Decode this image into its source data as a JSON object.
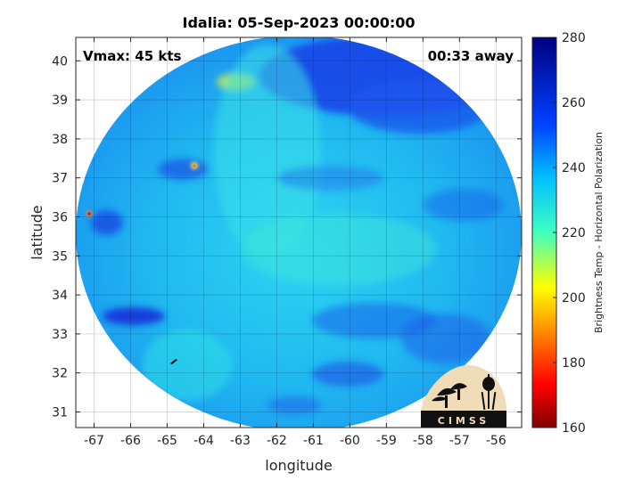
{
  "chart_data": {
    "type": "heatmap",
    "title": "Idalia: 05-Sep-2023 00:00:00",
    "xlabel": "longitude",
    "ylabel": "latitude",
    "xlim": [
      -67.5,
      -55.3
    ],
    "ylim": [
      30.6,
      40.6
    ],
    "x_ticks": [
      -67,
      -66,
      -65,
      -64,
      -63,
      -62,
      -61,
      -60,
      -59,
      -58,
      -57,
      -56
    ],
    "y_ticks": [
      31,
      32,
      33,
      34,
      35,
      36,
      37,
      38,
      39,
      40
    ],
    "grid": true,
    "annotations": {
      "vmax": "Vmax: 45 kts",
      "time_away": "00:33 away"
    },
    "colorbar": {
      "label": "Brightness Temp - Horizontal Polarization",
      "range": [
        160,
        280
      ],
      "ticks": [
        160,
        180,
        200,
        220,
        240,
        260,
        280
      ],
      "colormap": "jet"
    },
    "logo_text": "CIMSS"
  }
}
